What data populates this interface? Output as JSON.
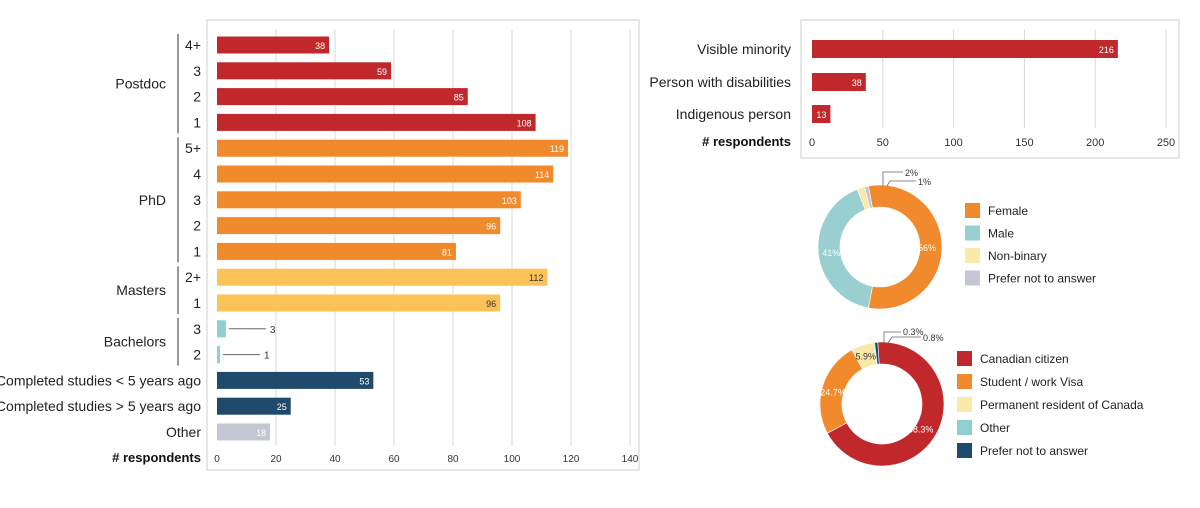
{
  "chart_data": [
    {
      "type": "bar",
      "orientation": "horizontal",
      "groups": [
        {
          "label": "Postdoc",
          "items": [
            {
              "category": "4+",
              "value": 38
            },
            {
              "category": "3",
              "value": 59
            },
            {
              "category": "2",
              "value": 85
            },
            {
              "category": "1",
              "value": 108
            }
          ]
        },
        {
          "label": "PhD",
          "items": [
            {
              "category": "5+",
              "value": 119
            },
            {
              "category": "4",
              "value": 114
            },
            {
              "category": "3",
              "value": 103
            },
            {
              "category": "2",
              "value": 96
            },
            {
              "category": "1",
              "value": 81
            }
          ]
        },
        {
          "label": "Masters",
          "items": [
            {
              "category": "2+",
              "value": 112
            },
            {
              "category": "1",
              "value": 96
            }
          ]
        },
        {
          "label": "Bachelors",
          "items": [
            {
              "category": "3",
              "value": 3
            },
            {
              "category": "2",
              "value": 1
            }
          ]
        },
        {
          "label": "",
          "items": [
            {
              "category": "Completed studies < 5 years ago",
              "value": 53
            },
            {
              "category": "Completed studies > 5 years ago",
              "value": 25
            },
            {
              "category": "Other",
              "value": 18
            }
          ]
        }
      ],
      "group_colors": [
        "#c0282b",
        "#f18a2c",
        "#fdc257",
        "#8ecfcf",
        "#1f4a6b"
      ],
      "other_color": "#c5c6d3",
      "xlabel": "# respondents",
      "xlim": [
        0,
        140
      ],
      "xticks": [
        0,
        20,
        40,
        60,
        80,
        100,
        120,
        140
      ],
      "grid": true
    },
    {
      "type": "bar",
      "orientation": "horizontal",
      "categories": [
        "Visible minority",
        "Person with disabilities",
        "Indigenous person"
      ],
      "values": [
        216,
        38,
        13
      ],
      "color": "#c0282b",
      "xlabel": "# respondents",
      "xlim": [
        0,
        250
      ],
      "xticks": [
        0,
        50,
        100,
        150,
        200,
        250
      ],
      "grid": true
    },
    {
      "type": "pie",
      "donut": true,
      "slices": [
        {
          "label": "Female",
          "value": 56,
          "text": "56%",
          "color": "#f18a2c"
        },
        {
          "label": "Male",
          "value": 41,
          "text": "41%",
          "color": "#99cfd1"
        },
        {
          "label": "Non-binary",
          "value": 2,
          "text": "2%",
          "color": "#fbe9a7"
        },
        {
          "label": "Prefer not to answer",
          "value": 1,
          "text": "1%",
          "color": "#c5c6d3"
        }
      ],
      "legend": "right"
    },
    {
      "type": "pie",
      "donut": true,
      "slices": [
        {
          "label": "Canadian citizen",
          "value": 68.3,
          "text": "68.3%",
          "color": "#c0282b"
        },
        {
          "label": "Student / work Visa",
          "value": 24.7,
          "text": "24.7%",
          "color": "#f18a2c"
        },
        {
          "label": "Permanent resident of Canada",
          "value": 5.9,
          "text": "5.9%",
          "color": "#fbe9a7"
        },
        {
          "label": "Other",
          "value": 0.3,
          "text": "0.3%",
          "color": "#8ecfcf"
        },
        {
          "label": "Prefer not to answer",
          "value": 0.8,
          "text": "0.8%",
          "color": "#1f4a6b"
        }
      ],
      "legend": "right"
    }
  ]
}
